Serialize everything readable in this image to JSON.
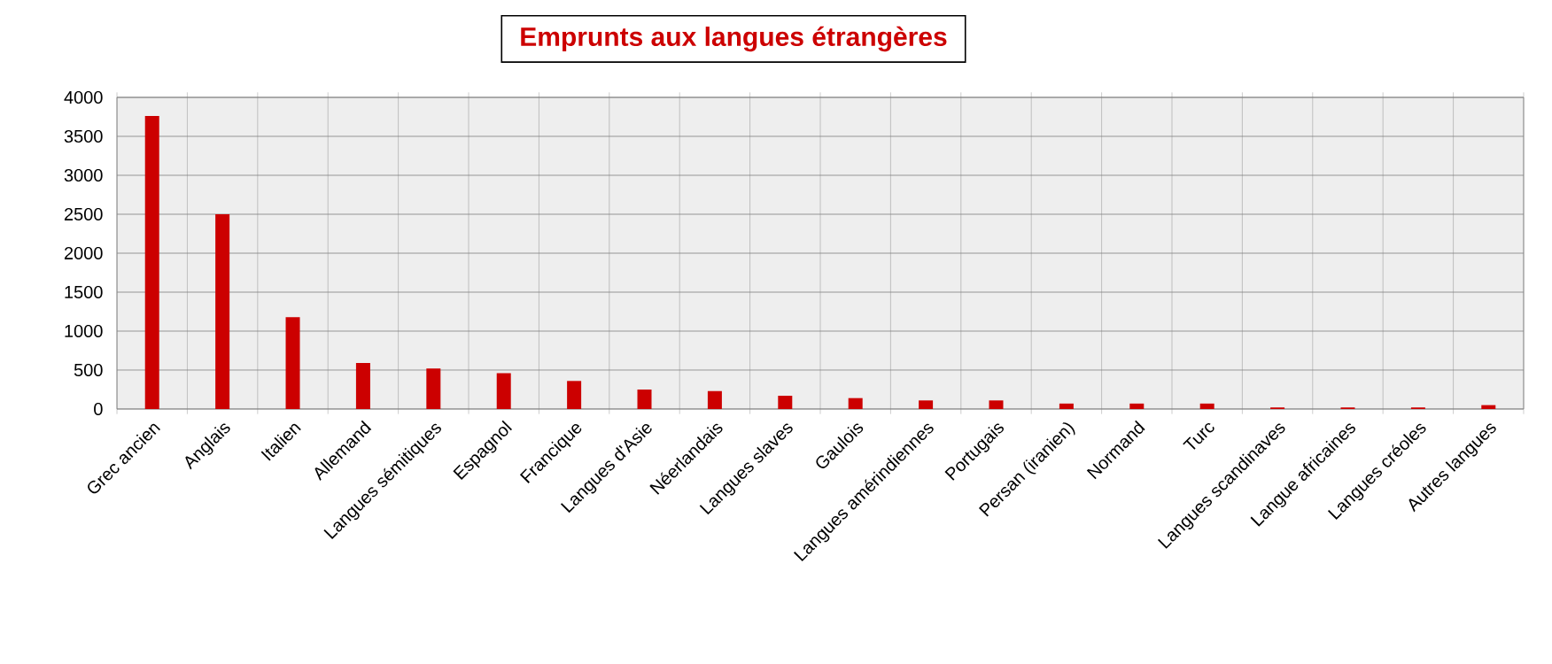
{
  "chart_data": {
    "type": "bar",
    "title": "Emprunts aux langues étrangères",
    "categories": [
      "Grec ancien",
      "Anglais",
      "Italien",
      "Allemand",
      "Langues sémitiques",
      "Espagnol",
      "Francique",
      "Langues d'Asie",
      "Néerlandais",
      "Langues slaves",
      "Gaulois",
      "Langues amérindiennes",
      "Portugais",
      "Persan (iranien)",
      "Normand",
      "Turc",
      "Langues scandinaves",
      "Langue africaines",
      "Langues créoles",
      "Autres langues"
    ],
    "values": [
      3760,
      2500,
      1180,
      590,
      520,
      460,
      360,
      250,
      230,
      170,
      140,
      110,
      110,
      70,
      70,
      70,
      20,
      20,
      20,
      50
    ],
    "color": "#cc0000",
    "ylim": [
      0,
      4000
    ],
    "yticks": [
      0,
      500,
      1000,
      1500,
      2000,
      2500,
      3000,
      3500,
      4000
    ],
    "grid": true
  }
}
